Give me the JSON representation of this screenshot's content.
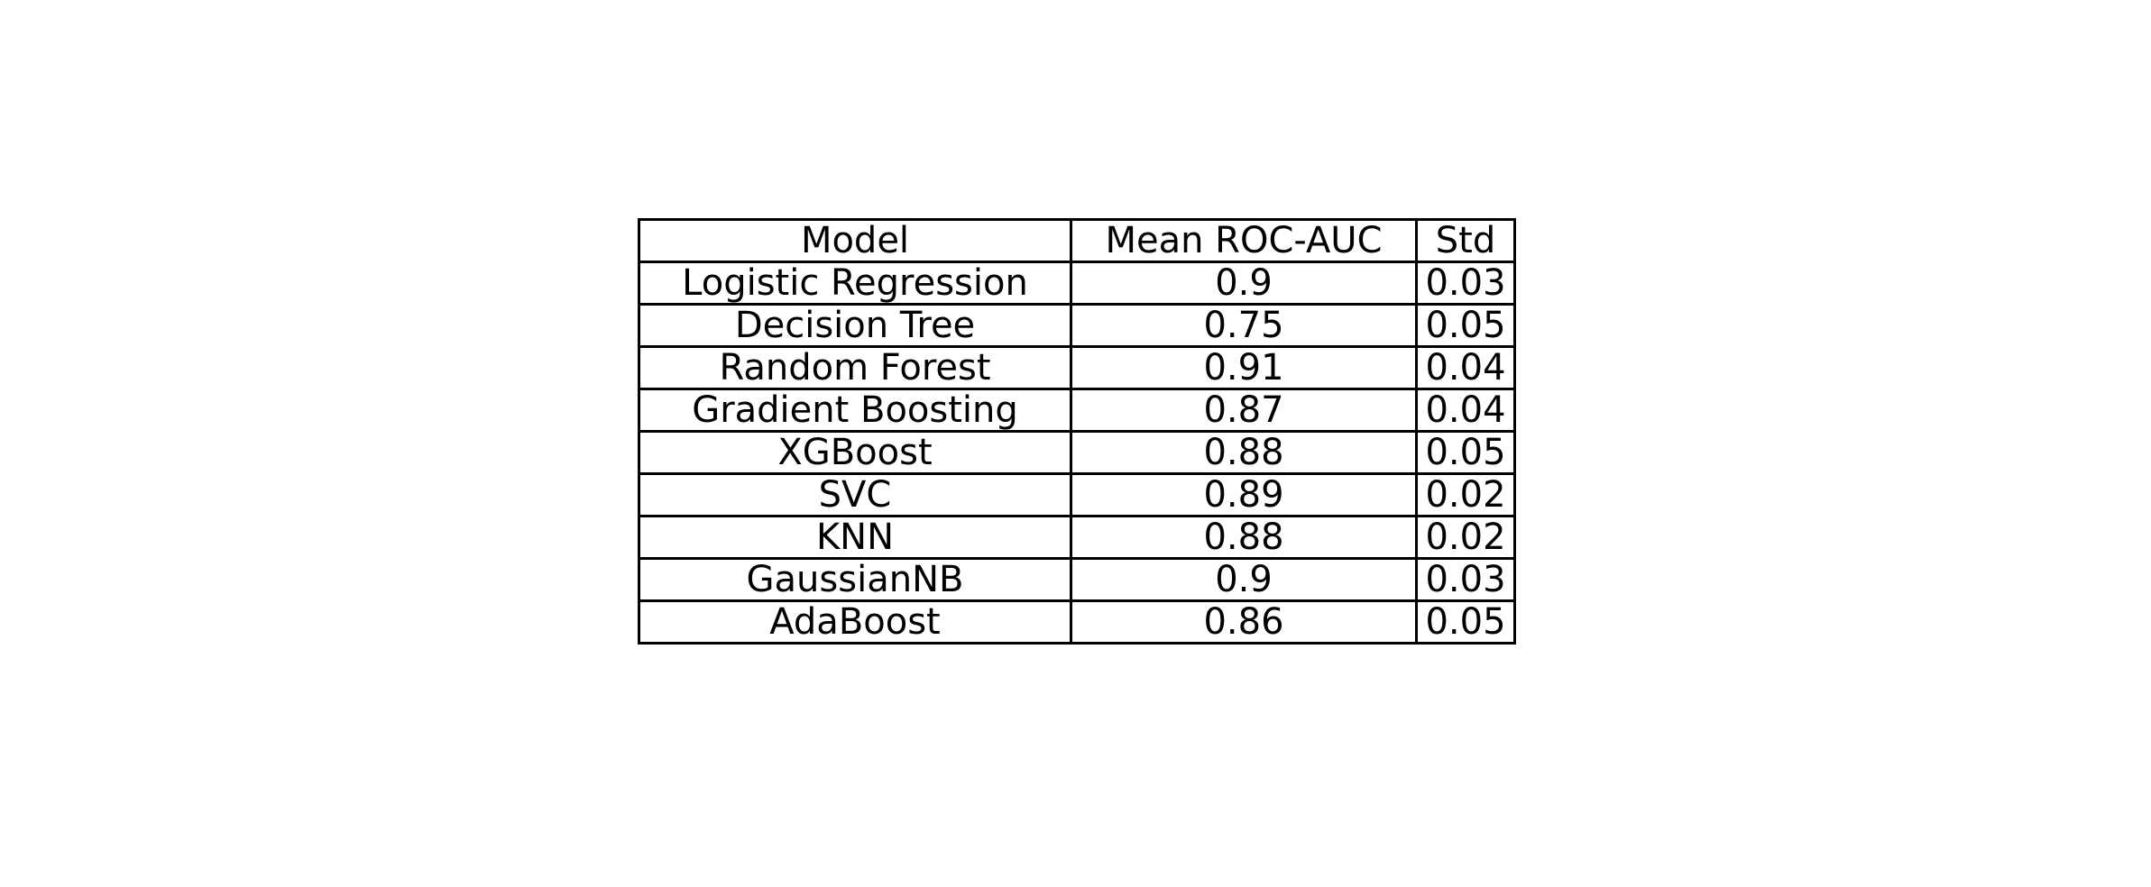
{
  "chart_data": {
    "type": "table",
    "columns": [
      "Model",
      "Mean ROC-AUC",
      "Std"
    ],
    "rows": [
      [
        "Logistic Regression",
        "0.9",
        "0.03"
      ],
      [
        "Decision Tree",
        "0.75",
        "0.05"
      ],
      [
        "Random Forest",
        "0.91",
        "0.04"
      ],
      [
        "Gradient Boosting",
        "0.87",
        "0.04"
      ],
      [
        "XGBoost",
        "0.88",
        "0.05"
      ],
      [
        "SVC",
        "0.89",
        "0.02"
      ],
      [
        "KNN",
        "0.88",
        "0.02"
      ],
      [
        "GaussianNB",
        "0.9",
        "0.03"
      ],
      [
        "AdaBoost",
        "0.86",
        "0.05"
      ]
    ],
    "border_color": "#000000",
    "background_color": "#ffffff"
  }
}
